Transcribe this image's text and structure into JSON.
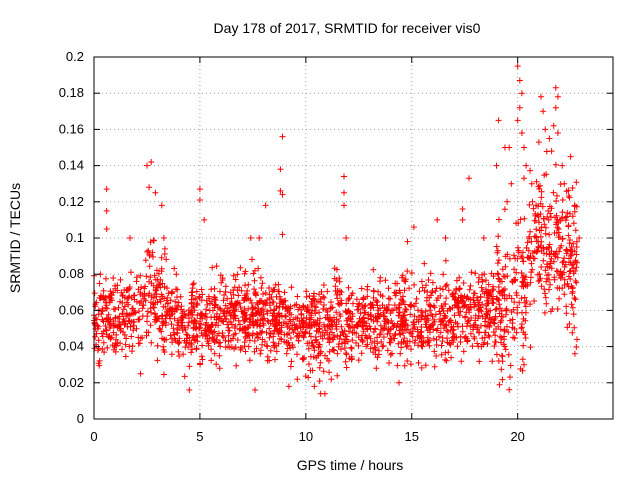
{
  "chart_data": {
    "type": "scatter",
    "title": "Day 178 of 2017, SRMTID for receiver vis0",
    "xlabel": "GPS time / hours",
    "ylabel": "SRMTID / TECUs",
    "xlim": [
      0,
      24.5
    ],
    "ylim": [
      0,
      0.2
    ],
    "xticks": [
      0,
      5,
      10,
      15,
      20
    ],
    "xtick_labels": [
      "0",
      "5",
      "10",
      "15",
      "20"
    ],
    "yticks": [
      0,
      0.02,
      0.04,
      0.06,
      0.08,
      0.1,
      0.12,
      0.14,
      0.16,
      0.18,
      0.2
    ],
    "ytick_labels": [
      "0",
      "0.02",
      "0.04",
      "0.06",
      "0.08",
      "0.1",
      "0.12",
      "0.14",
      "0.16",
      "0.18",
      "0.2"
    ],
    "grid": true,
    "marker": "plus",
    "color": "#ff0000",
    "series": [
      {
        "name": "SRMTID",
        "trend": [
          {
            "x": 0.0,
            "y": 0.056
          },
          {
            "x": 1.0,
            "y": 0.055
          },
          {
            "x": 2.0,
            "y": 0.058
          },
          {
            "x": 2.6,
            "y": 0.075
          },
          {
            "x": 3.0,
            "y": 0.066
          },
          {
            "x": 4.0,
            "y": 0.052
          },
          {
            "x": 5.0,
            "y": 0.053
          },
          {
            "x": 6.0,
            "y": 0.055
          },
          {
            "x": 7.0,
            "y": 0.058
          },
          {
            "x": 8.0,
            "y": 0.057
          },
          {
            "x": 9.0,
            "y": 0.056
          },
          {
            "x": 10.0,
            "y": 0.05
          },
          {
            "x": 11.0,
            "y": 0.05
          },
          {
            "x": 12.0,
            "y": 0.056
          },
          {
            "x": 13.0,
            "y": 0.054
          },
          {
            "x": 14.0,
            "y": 0.055
          },
          {
            "x": 15.0,
            "y": 0.054
          },
          {
            "x": 16.0,
            "y": 0.055
          },
          {
            "x": 17.0,
            "y": 0.058
          },
          {
            "x": 18.0,
            "y": 0.058
          },
          {
            "x": 19.0,
            "y": 0.062
          },
          {
            "x": 20.0,
            "y": 0.073
          },
          {
            "x": 21.0,
            "y": 0.1
          },
          {
            "x": 22.0,
            "y": 0.095
          },
          {
            "x": 22.8,
            "y": 0.085
          }
        ],
        "highlights": [
          {
            "x": 0.3,
            "y": 0.08
          },
          {
            "x": 0.6,
            "y": 0.127
          },
          {
            "x": 0.6,
            "y": 0.115
          },
          {
            "x": 0.6,
            "y": 0.105
          },
          {
            "x": 1.7,
            "y": 0.1
          },
          {
            "x": 2.5,
            "y": 0.14
          },
          {
            "x": 2.7,
            "y": 0.142
          },
          {
            "x": 2.6,
            "y": 0.128
          },
          {
            "x": 2.9,
            "y": 0.125
          },
          {
            "x": 3.2,
            "y": 0.118
          },
          {
            "x": 3.3,
            "y": 0.1
          },
          {
            "x": 5.0,
            "y": 0.127
          },
          {
            "x": 5.0,
            "y": 0.121
          },
          {
            "x": 5.2,
            "y": 0.11
          },
          {
            "x": 7.4,
            "y": 0.1
          },
          {
            "x": 7.8,
            "y": 0.1
          },
          {
            "x": 8.1,
            "y": 0.118
          },
          {
            "x": 8.9,
            "y": 0.156
          },
          {
            "x": 8.8,
            "y": 0.138
          },
          {
            "x": 8.8,
            "y": 0.126
          },
          {
            "x": 8.9,
            "y": 0.124
          },
          {
            "x": 8.9,
            "y": 0.102
          },
          {
            "x": 11.8,
            "y": 0.134
          },
          {
            "x": 11.8,
            "y": 0.125
          },
          {
            "x": 11.8,
            "y": 0.118
          },
          {
            "x": 11.9,
            "y": 0.1
          },
          {
            "x": 14.8,
            "y": 0.098
          },
          {
            "x": 15.1,
            "y": 0.106
          },
          {
            "x": 16.2,
            "y": 0.11
          },
          {
            "x": 16.6,
            "y": 0.1
          },
          {
            "x": 17.4,
            "y": 0.116
          },
          {
            "x": 17.7,
            "y": 0.133
          },
          {
            "x": 17.4,
            "y": 0.11
          },
          {
            "x": 18.4,
            "y": 0.1
          },
          {
            "x": 19.0,
            "y": 0.14
          },
          {
            "x": 19.1,
            "y": 0.165
          },
          {
            "x": 19.4,
            "y": 0.15
          },
          {
            "x": 19.5,
            "y": 0.12
          },
          {
            "x": 19.6,
            "y": 0.15
          },
          {
            "x": 19.7,
            "y": 0.13
          },
          {
            "x": 20.0,
            "y": 0.195
          },
          {
            "x": 20.1,
            "y": 0.187
          },
          {
            "x": 20.2,
            "y": 0.18
          },
          {
            "x": 20.1,
            "y": 0.172
          },
          {
            "x": 20.0,
            "y": 0.165
          },
          {
            "x": 20.2,
            "y": 0.158
          },
          {
            "x": 20.3,
            "y": 0.15
          },
          {
            "x": 20.3,
            "y": 0.133
          },
          {
            "x": 20.4,
            "y": 0.14
          },
          {
            "x": 20.3,
            "y": 0.03
          },
          {
            "x": 20.7,
            "y": 0.12
          },
          {
            "x": 21.0,
            "y": 0.153
          },
          {
            "x": 21.1,
            "y": 0.178
          },
          {
            "x": 21.2,
            "y": 0.17
          },
          {
            "x": 21.3,
            "y": 0.16
          },
          {
            "x": 21.5,
            "y": 0.155
          },
          {
            "x": 21.6,
            "y": 0.148
          },
          {
            "x": 21.8,
            "y": 0.183
          },
          {
            "x": 21.9,
            "y": 0.178
          },
          {
            "x": 21.8,
            "y": 0.172
          },
          {
            "x": 21.7,
            "y": 0.162
          },
          {
            "x": 21.9,
            "y": 0.158
          },
          {
            "x": 22.1,
            "y": 0.14
          },
          {
            "x": 22.2,
            "y": 0.13
          },
          {
            "x": 22.5,
            "y": 0.145
          },
          {
            "x": 22.6,
            "y": 0.112
          },
          {
            "x": 22.7,
            "y": 0.118
          },
          {
            "x": 22.8,
            "y": 0.044
          },
          {
            "x": 22.7,
            "y": 0.036
          },
          {
            "x": 22.9,
            "y": 0.1
          },
          {
            "x": 4.5,
            "y": 0.016
          },
          {
            "x": 7.6,
            "y": 0.016
          },
          {
            "x": 10.7,
            "y": 0.014
          },
          {
            "x": 10.9,
            "y": 0.014
          },
          {
            "x": 10.4,
            "y": 0.018
          },
          {
            "x": 14.4,
            "y": 0.02
          },
          {
            "x": 9.2,
            "y": 0.018
          },
          {
            "x": 2.2,
            "y": 0.025
          },
          {
            "x": 11.2,
            "y": 0.022
          }
        ],
        "n_points": 2300,
        "noise": {
          "y_range": [
            0.02,
            0.09
          ],
          "bump_window": [
            2.4,
            3.4
          ],
          "active_window": [
            19.0,
            23.0
          ]
        }
      }
    ]
  }
}
